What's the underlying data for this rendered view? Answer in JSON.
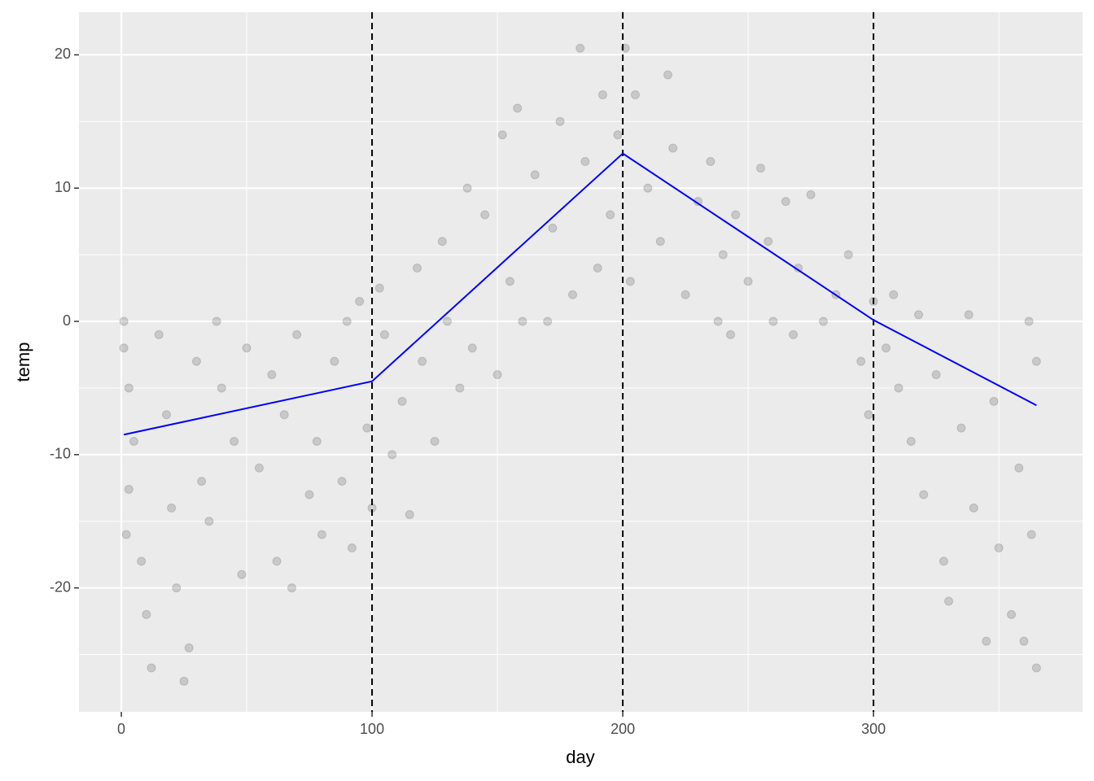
{
  "chart_data": {
    "type": "scatter",
    "x_label": "day",
    "y_label": "temp",
    "xlim": [
      -16.9,
      383.4
    ],
    "ylim": [
      -29.3,
      23.2
    ],
    "xticks": [
      0,
      100,
      200,
      300
    ],
    "yticks": [
      -20,
      -10,
      0,
      10,
      20
    ],
    "x_minor_ticks": [
      50,
      150,
      250,
      350
    ],
    "y_minor_ticks": [
      -25,
      -15,
      -5,
      5,
      15
    ],
    "grid": true,
    "vlines": [
      100,
      200,
      300
    ],
    "points": {
      "color": "#000000",
      "opacity": 0.15,
      "x": [
        1,
        1,
        3,
        3,
        2,
        5,
        8,
        10,
        12,
        15,
        18,
        20,
        22,
        25,
        27,
        30,
        32,
        35,
        38,
        40,
        45,
        48,
        50,
        55,
        60,
        62,
        65,
        68,
        70,
        75,
        78,
        80,
        85,
        88,
        90,
        92,
        95,
        98,
        100,
        103,
        105,
        108,
        112,
        115,
        118,
        120,
        125,
        128,
        130,
        135,
        138,
        140,
        145,
        150,
        152,
        155,
        158,
        160,
        165,
        170,
        172,
        175,
        180,
        183,
        185,
        190,
        192,
        195,
        198,
        201,
        203,
        205,
        210,
        215,
        218,
        220,
        225,
        230,
        235,
        238,
        240,
        243,
        245,
        250,
        255,
        258,
        260,
        265,
        268,
        270,
        275,
        280,
        285,
        290,
        295,
        298,
        300,
        305,
        308,
        310,
        315,
        318,
        320,
        325,
        328,
        330,
        335,
        338,
        340,
        345,
        348,
        350,
        355,
        358,
        360,
        362,
        363,
        365,
        365
      ],
      "y": [
        0,
        -2,
        -5,
        -12.6,
        -16,
        -9,
        -18,
        -22,
        -26,
        -1,
        -7,
        -14,
        -20,
        -27,
        -24.5,
        -3,
        -12,
        -15,
        0,
        -5,
        -9,
        -19,
        -2,
        -11,
        -4,
        -18,
        -7,
        -20,
        -1,
        -13,
        -9,
        -16,
        -3,
        -12,
        0,
        -17,
        1.5,
        -8,
        -14,
        2.5,
        -1,
        -10,
        -6,
        -14.5,
        4,
        -3,
        -9,
        6,
        0,
        -5,
        10,
        -2,
        8,
        -4,
        14,
        3,
        16,
        0,
        11,
        0,
        7,
        15,
        2,
        20.5,
        12,
        4,
        17,
        8,
        14,
        20.5,
        3,
        17,
        10,
        6,
        18.5,
        13,
        2,
        9,
        12,
        0,
        5,
        -1,
        8,
        3,
        11.5,
        6,
        0,
        9,
        -1,
        4,
        9.5,
        0,
        2,
        5,
        -3,
        -7,
        1.5,
        -2,
        2,
        -5,
        -9,
        0.5,
        -13,
        -4,
        -18,
        -21,
        -8,
        0.5,
        -14,
        -24,
        -6,
        -17,
        -22,
        -11,
        -24,
        0,
        -16,
        -26,
        -3
      ]
    },
    "fit": {
      "color": "#0000ff",
      "x": [
        1,
        100,
        200,
        300,
        365
      ],
      "y": [
        -8.5,
        -4.5,
        12.6,
        0.1,
        -6.3
      ]
    }
  }
}
